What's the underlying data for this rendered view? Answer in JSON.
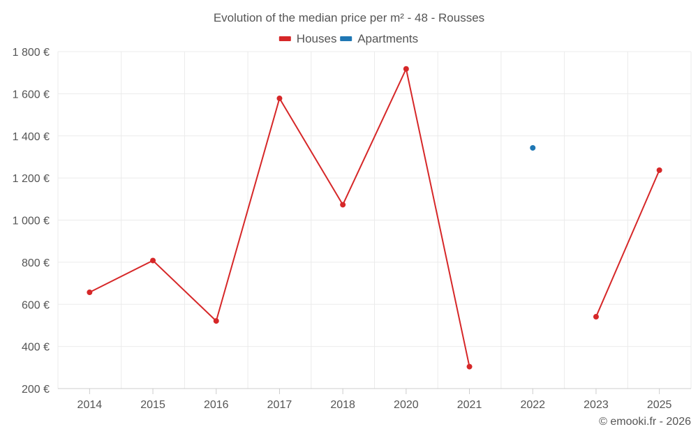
{
  "chart_data": {
    "type": "line",
    "title": "Evolution of the median price per m² - 48 - Rousses",
    "categories": [
      "2014",
      "2015",
      "2016",
      "2017",
      "2018",
      "2020",
      "2021",
      "2022",
      "2023",
      "2025"
    ],
    "series": [
      {
        "name": "Houses",
        "color": "#d62728",
        "values": [
          657,
          808,
          521,
          1578,
          1073,
          1718,
          304,
          null,
          541,
          1237
        ]
      },
      {
        "name": "Apartments",
        "color": "#1f77b4",
        "values": [
          null,
          null,
          null,
          null,
          null,
          null,
          null,
          1343,
          null,
          null
        ]
      }
    ],
    "ylim": [
      200,
      1800
    ],
    "yticks": [
      200,
      400,
      600,
      800,
      1000,
      1200,
      1400,
      1600,
      1800
    ],
    "ytick_labels": [
      "200 €",
      "400 €",
      "600 €",
      "800 €",
      "1 000 €",
      "1 200 €",
      "1 400 €",
      "1 600 €",
      "1 800 €"
    ],
    "xlabel": "",
    "ylabel": "",
    "grid": true,
    "legend_position": "top-center"
  },
  "credit": "© emooki.fr - 2026"
}
